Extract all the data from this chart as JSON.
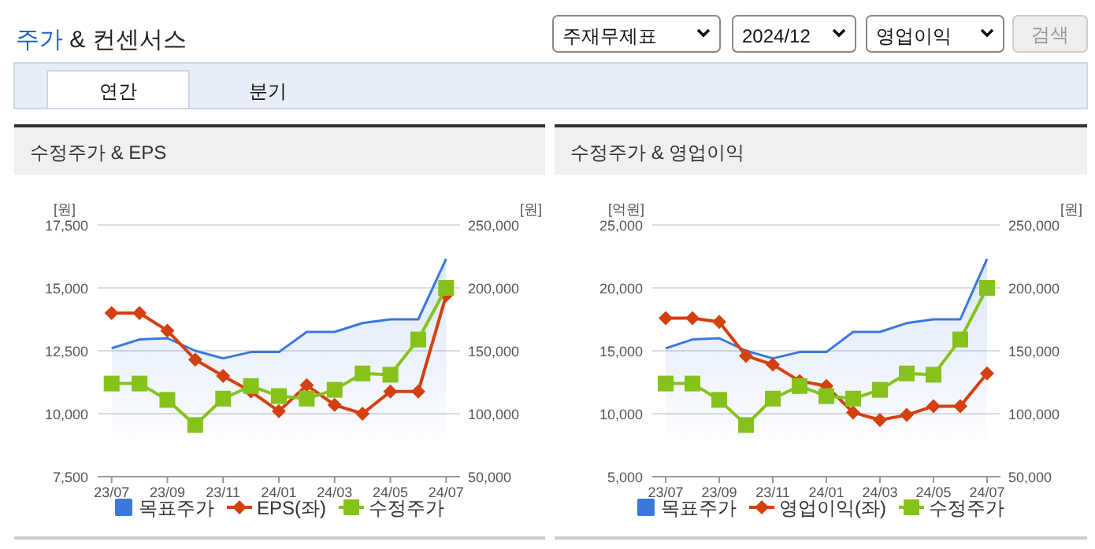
{
  "chart_data": [
    {
      "type": "other",
      "title": "주가 & 컨센서스",
      "annotations": [
        "주재무제표",
        "2024/12",
        "영업이익",
        "검색",
        "연간",
        "분기"
      ]
    },
    {
      "type": "line",
      "title": "수정주가 & EPS",
      "ylabel": "[원]",
      "y2label": "[원]",
      "categories": [
        "23/07",
        null,
        "23/09",
        null,
        "23/11",
        null,
        "24/01",
        null,
        "24/03",
        null,
        "24/05",
        null,
        "24/07"
      ],
      "ylim": [
        7500,
        17500
      ],
      "yticks": [
        {
          "value": 7500,
          "label": "7,500"
        },
        {
          "value": 10000,
          "label": "10,000"
        },
        {
          "value": 12500,
          "label": "12,500"
        },
        {
          "value": 15000,
          "label": "15,000"
        },
        {
          "value": 17500,
          "label": "17,500"
        }
      ],
      "y2lim": [
        50000,
        250000
      ],
      "y2ticks": [
        {
          "value": 50000,
          "label": "50,000"
        },
        {
          "value": 100000,
          "label": "100,000"
        },
        {
          "value": 150000,
          "label": "150,000"
        },
        {
          "value": 200000,
          "label": "200,000"
        },
        {
          "value": 250000,
          "label": "250,000"
        }
      ],
      "grid": "y",
      "legend": "bottom",
      "series": [
        {
          "name": "목표주가",
          "type": "area",
          "axis": "y2",
          "color": "#3a78dc",
          "values": [
            152000,
            159000,
            160000,
            150000,
            144000,
            149000,
            149000,
            165000,
            165000,
            172000,
            175000,
            175000,
            223000
          ]
        },
        {
          "name": "EPS(좌)",
          "type": "line",
          "marker": "diamond",
          "color": "#d4400e",
          "values": [
            14000,
            14000,
            13300,
            12150,
            11500,
            10880,
            10100,
            11130,
            10350,
            10000,
            10880,
            10880,
            14700
          ]
        },
        {
          "name": "수정주가",
          "type": "line",
          "axis": "y2",
          "marker": "square",
          "color": "#86c21a",
          "values": [
            124000,
            124000,
            111000,
            91000,
            112000,
            122000,
            114000,
            112000,
            119000,
            132000,
            131000,
            159000,
            200000
          ]
        }
      ]
    },
    {
      "type": "line",
      "title": "수정주가 & 영업이익",
      "ylabel": "[억원]",
      "y2label": "[원]",
      "categories": [
        "23/07",
        null,
        "23/09",
        null,
        "23/11",
        null,
        "24/01",
        null,
        "24/03",
        null,
        "24/05",
        null,
        "24/07"
      ],
      "ylim": [
        5000,
        25000
      ],
      "yticks": [
        {
          "value": 5000,
          "label": "5,000"
        },
        {
          "value": 10000,
          "label": "10,000"
        },
        {
          "value": 15000,
          "label": "15,000"
        },
        {
          "value": 20000,
          "label": "20,000"
        },
        {
          "value": 25000,
          "label": "25,000"
        }
      ],
      "y2lim": [
        50000,
        250000
      ],
      "y2ticks": [
        {
          "value": 50000,
          "label": "50,000"
        },
        {
          "value": 100000,
          "label": "100,000"
        },
        {
          "value": 150000,
          "label": "150,000"
        },
        {
          "value": 200000,
          "label": "200,000"
        },
        {
          "value": 250000,
          "label": "250,000"
        }
      ],
      "grid": "y",
      "legend": "bottom",
      "series": [
        {
          "name": "목표주가",
          "type": "area",
          "axis": "y2",
          "color": "#3a78dc",
          "values": [
            152000,
            159000,
            160000,
            150000,
            144000,
            149000,
            149000,
            165000,
            165000,
            172000,
            175000,
            175000,
            223000
          ]
        },
        {
          "name": "영업이익(좌)",
          "type": "line",
          "marker": "diamond",
          "color": "#d4400e",
          "values": [
            17600,
            17600,
            17300,
            14600,
            13900,
            12600,
            12200,
            10100,
            9500,
            9900,
            10600,
            10600,
            13200
          ]
        },
        {
          "name": "수정주가",
          "type": "line",
          "axis": "y2",
          "marker": "square",
          "color": "#86c21a",
          "values": [
            124000,
            124000,
            111000,
            91000,
            112000,
            122000,
            114000,
            112000,
            119000,
            132000,
            131000,
            159000,
            200000
          ]
        }
      ]
    }
  ]
}
